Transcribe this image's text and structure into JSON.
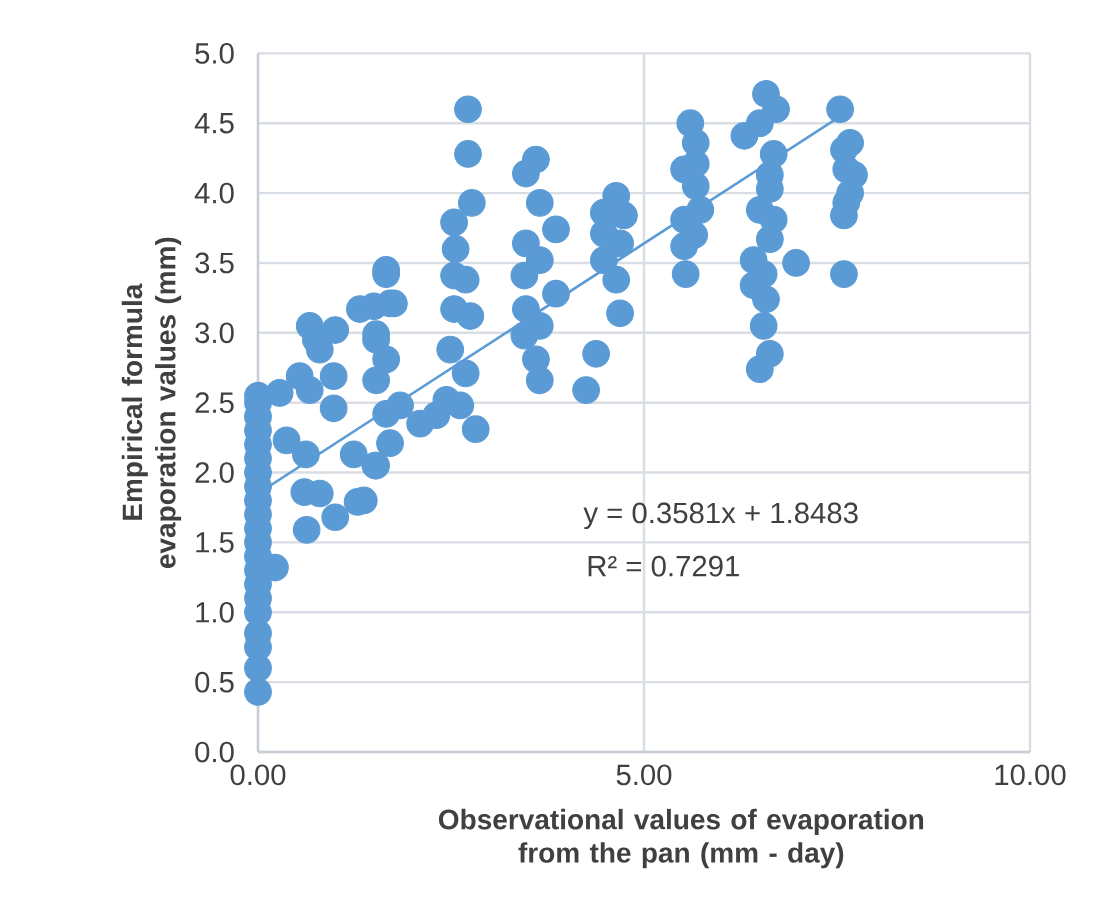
{
  "chart_data": {
    "type": "scatter",
    "xlabel": "Observational values of evaporation from the pan (mm - day)",
    "ylabel": "Empirical formula evaporation values (mm)",
    "annotations": [
      "y = 0.3581x + 1.8483",
      "R² = 0.7291"
    ],
    "xlim": [
      0,
      10
    ],
    "ylim": [
      0,
      5
    ],
    "xticks": [
      {
        "value": 0,
        "label": "0.00"
      },
      {
        "value": 5,
        "label": "5.00"
      },
      {
        "value": 10,
        "label": "10.00"
      }
    ],
    "yticks": [
      {
        "value": 0,
        "label": "0.0"
      },
      {
        "value": 0.5,
        "label": "0.5"
      },
      {
        "value": 1,
        "label": "1.0"
      },
      {
        "value": 1.5,
        "label": "1.5"
      },
      {
        "value": 2,
        "label": "2.0"
      },
      {
        "value": 2.5,
        "label": "2.5"
      },
      {
        "value": 3,
        "label": "3.0"
      },
      {
        "value": 3.5,
        "label": "3.5"
      },
      {
        "value": 4,
        "label": "4.0"
      },
      {
        "value": 4.5,
        "label": "4.5"
      },
      {
        "value": 5,
        "label": "5.0"
      }
    ],
    "grid": true,
    "series": [
      {
        "color": "#5b9bd5",
        "marker": "circle",
        "x": [
          0,
          0,
          0,
          0,
          0,
          0,
          0,
          0,
          0,
          0,
          0,
          0,
          0,
          0,
          0,
          0,
          0,
          0,
          0,
          0,
          0,
          0.22,
          0.67,
          0.98,
          1.84,
          0.98,
          1.24,
          1.52,
          1.29,
          1.0,
          0.63,
          0.6,
          0.8,
          0.62,
          0.37,
          0.28,
          0.54,
          0.8,
          0.67,
          1.0,
          0.75,
          1.32,
          1.66,
          1.71,
          1.53,
          2.72,
          2.72,
          2.77,
          2.54,
          2.56,
          2.54,
          2.69,
          2.54,
          2.75,
          2.49,
          2.69,
          2.44,
          2.62,
          2.1,
          2.31,
          2.82,
          1.66,
          1.5,
          1.76,
          1.53,
          1.66,
          1.53,
          1.66,
          1.71,
          1.53,
          1.37,
          3.6,
          3.47,
          3.65,
          3.86,
          3.47,
          3.65,
          3.45,
          3.86,
          3.47,
          3.65,
          3.45,
          3.6,
          3.65,
          4.38,
          4.25,
          4.64,
          4.48,
          4.74,
          4.48,
          4.69,
          4.48,
          4.64,
          4.69,
          5.6,
          5.67,
          5.52,
          5.67,
          5.67,
          5.73,
          5.52,
          5.65,
          5.52,
          5.54,
          6.58,
          6.71,
          6.3,
          6.5,
          6.68,
          6.63,
          6.63,
          6.5,
          6.68,
          6.63,
          6.42,
          6.55,
          6.42,
          6.58,
          6.55,
          6.63,
          6.5,
          6.97,
          7.54,
          7.67,
          7.59,
          7.72,
          7.62,
          7.67,
          7.59,
          7.62,
          7.59
        ],
        "values": [
          0.43,
          0.6,
          0.75,
          0.85,
          1.0,
          1.1,
          1.2,
          1.3,
          1.4,
          1.5,
          1.6,
          1.7,
          1.8,
          1.9,
          2.0,
          2.1,
          2.2,
          2.3,
          2.4,
          2.5,
          2.55,
          1.32,
          2.59,
          2.69,
          2.48,
          2.46,
          2.13,
          2.05,
          1.79,
          1.68,
          1.59,
          1.86,
          1.85,
          2.13,
          2.23,
          2.57,
          2.69,
          2.88,
          3.05,
          3.02,
          2.95,
          3.17,
          3.45,
          3.21,
          2.99,
          4.6,
          4.28,
          3.93,
          3.79,
          3.6,
          3.41,
          3.38,
          3.17,
          3.12,
          2.88,
          2.71,
          2.52,
          2.48,
          2.35,
          2.41,
          2.31,
          3.42,
          3.19,
          3.21,
          2.95,
          2.81,
          2.66,
          2.42,
          2.21,
          2.05,
          1.8,
          4.24,
          4.14,
          3.93,
          3.74,
          3.64,
          3.52,
          3.41,
          3.28,
          3.17,
          3.05,
          2.98,
          2.81,
          2.66,
          2.85,
          2.59,
          3.98,
          3.86,
          3.84,
          3.71,
          3.64,
          3.52,
          3.38,
          3.14,
          4.5,
          4.36,
          4.17,
          4.21,
          4.05,
          3.88,
          3.81,
          3.7,
          3.62,
          3.42,
          4.71,
          4.6,
          4.41,
          4.5,
          4.28,
          4.13,
          4.03,
          3.88,
          3.81,
          3.67,
          3.52,
          3.42,
          3.34,
          3.24,
          3.05,
          2.85,
          2.74,
          3.5,
          4.6,
          4.36,
          4.31,
          4.13,
          4.17,
          4.0,
          3.84,
          3.93,
          3.42
        ]
      },
      {
        "type": "line",
        "color": "#5b9bd5",
        "marker": "none",
        "x": [
          0,
          7.6
        ],
        "values": [
          1.85,
          4.57
        ]
      }
    ]
  }
}
